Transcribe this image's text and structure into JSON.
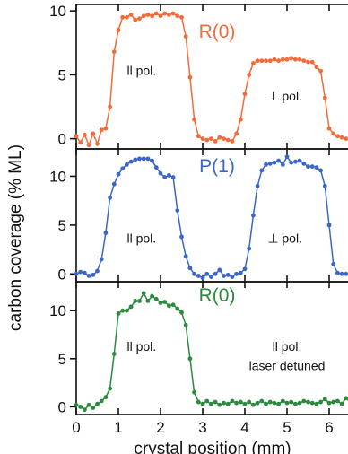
{
  "chart_data": [
    {
      "type": "line",
      "label": "R(0)",
      "color": "#f26b38",
      "ylim": [
        -0.8,
        10.5
      ],
      "yticks": [
        0,
        5,
        10
      ],
      "xlim": [
        0,
        6.6
      ],
      "annotations": [
        {
          "text": "ll pol.",
          "x": 1.55,
          "y": 5.0
        },
        {
          "text": "⊥ pol.",
          "x": 4.95,
          "y": 3.0
        }
      ],
      "x": [
        0.0,
        0.1,
        0.2,
        0.3,
        0.4,
        0.5,
        0.6,
        0.7,
        0.8,
        0.9,
        1.0,
        1.1,
        1.2,
        1.3,
        1.4,
        1.5,
        1.6,
        1.7,
        1.8,
        1.9,
        2.0,
        2.1,
        2.2,
        2.3,
        2.4,
        2.5,
        2.6,
        2.7,
        2.8,
        2.9,
        3.0,
        3.1,
        3.2,
        3.3,
        3.4,
        3.5,
        3.6,
        3.7,
        3.8,
        3.9,
        4.0,
        4.1,
        4.2,
        4.3,
        4.4,
        4.5,
        4.6,
        4.7,
        4.8,
        4.9,
        5.0,
        5.1,
        5.2,
        5.3,
        5.4,
        5.5,
        5.6,
        5.7,
        5.8,
        5.9,
        6.0,
        6.1,
        6.2,
        6.3,
        6.4,
        6.5
      ],
      "y": [
        0.2,
        -0.3,
        0.3,
        -0.5,
        0.4,
        -0.4,
        0.7,
        0.8,
        2.5,
        6.8,
        8.5,
        9.5,
        9.5,
        9.7,
        9.3,
        9.4,
        9.6,
        9.7,
        9.6,
        9.8,
        9.6,
        9.8,
        9.7,
        9.8,
        9.6,
        9.5,
        8.0,
        4.8,
        1.5,
        0.2,
        0.0,
        -0.1,
        0.0,
        -0.2,
        0.1,
        0.0,
        -0.1,
        -0.2,
        0.4,
        1.5,
        3.5,
        5.0,
        5.9,
        6.1,
        6.1,
        6.1,
        6.1,
        6.2,
        6.1,
        6.2,
        6.2,
        6.3,
        6.2,
        6.2,
        6.1,
        6.0,
        6.0,
        5.6,
        5.3,
        3.2,
        0.8,
        0.4,
        0.2,
        0.1,
        0.0,
        0.0
      ]
    },
    {
      "type": "line",
      "label": "P(1)",
      "color": "#3a66c8",
      "ylim": [
        -0.8,
        12.8
      ],
      "yticks": [
        0,
        5,
        10
      ],
      "xlim": [
        0,
        6.6
      ],
      "annotations": [
        {
          "text": "ll pol.",
          "x": 1.55,
          "y": 3.2
        },
        {
          "text": "⊥ pol.",
          "x": 4.95,
          "y": 3.2
        }
      ],
      "x": [
        0.0,
        0.1,
        0.2,
        0.3,
        0.4,
        0.5,
        0.6,
        0.7,
        0.8,
        0.9,
        1.0,
        1.1,
        1.2,
        1.3,
        1.4,
        1.5,
        1.6,
        1.7,
        1.8,
        1.9,
        2.0,
        2.1,
        2.2,
        2.3,
        2.4,
        2.5,
        2.6,
        2.7,
        2.8,
        2.9,
        3.0,
        3.1,
        3.2,
        3.3,
        3.4,
        3.5,
        3.6,
        3.7,
        3.8,
        3.9,
        4.0,
        4.1,
        4.2,
        4.3,
        4.4,
        4.5,
        4.6,
        4.7,
        4.8,
        4.9,
        5.0,
        5.1,
        5.2,
        5.3,
        5.4,
        5.5,
        5.6,
        5.7,
        5.8,
        5.9,
        6.0,
        6.1,
        6.2,
        6.3,
        6.4,
        6.5
      ],
      "y": [
        0.0,
        0.2,
        0.1,
        -0.2,
        -0.1,
        0.3,
        1.5,
        4.2,
        7.8,
        9.2,
        10.2,
        10.8,
        11.2,
        11.5,
        11.7,
        11.8,
        11.8,
        11.8,
        11.6,
        10.9,
        10.3,
        9.9,
        10.1,
        9.9,
        6.5,
        3.8,
        1.8,
        0.6,
        0.0,
        -0.2,
        -0.4,
        0.0,
        -0.3,
        0.0,
        0.4,
        -0.2,
        -0.1,
        -0.3,
        0.0,
        0.1,
        0.5,
        2.6,
        6.0,
        9.0,
        10.6,
        11.2,
        11.3,
        11.4,
        11.6,
        11.2,
        12.0,
        11.4,
        11.5,
        11.6,
        11.3,
        11.0,
        11.0,
        10.9,
        10.6,
        9.0,
        5.0,
        1.0,
        0.1,
        0.0,
        0.0,
        0.0
      ]
    },
    {
      "type": "line",
      "label": "R(0)",
      "color": "#2a8a3e",
      "ylim": [
        -0.8,
        13.0
      ],
      "yticks": [
        0,
        5,
        10
      ],
      "xlim": [
        0,
        6.6
      ],
      "xticks": [
        0,
        1,
        2,
        3,
        4,
        5,
        6
      ],
      "annotations": [
        {
          "text": "ll pol.",
          "x": 1.55,
          "y": 5.8
        },
        {
          "text": "ll pol.",
          "x": 5.0,
          "y": 5.8
        },
        {
          "text": "laser detuned",
          "x": 5.0,
          "y": 3.8
        }
      ],
      "x": [
        0.0,
        0.1,
        0.2,
        0.3,
        0.4,
        0.5,
        0.6,
        0.7,
        0.8,
        0.9,
        1.0,
        1.1,
        1.2,
        1.3,
        1.4,
        1.5,
        1.6,
        1.7,
        1.8,
        1.9,
        2.0,
        2.1,
        2.2,
        2.3,
        2.4,
        2.5,
        2.6,
        2.7,
        2.8,
        2.9,
        3.0,
        3.1,
        3.2,
        3.3,
        3.4,
        3.5,
        3.6,
        3.7,
        3.8,
        3.9,
        4.0,
        4.1,
        4.2,
        4.3,
        4.4,
        4.5,
        4.6,
        4.7,
        4.8,
        4.9,
        5.0,
        5.1,
        5.2,
        5.3,
        5.4,
        5.5,
        5.6,
        5.7,
        5.8,
        5.9,
        6.0,
        6.1,
        6.2,
        6.3,
        6.4,
        6.5
      ],
      "y": [
        0.2,
        0.0,
        -0.3,
        0.2,
        -0.1,
        0.3,
        0.6,
        1.0,
        1.9,
        5.5,
        9.7,
        10.0,
        10.0,
        10.4,
        11.0,
        11.0,
        11.8,
        11.0,
        11.5,
        11.2,
        10.8,
        10.9,
        10.5,
        10.6,
        10.2,
        9.8,
        8.5,
        5.0,
        1.5,
        0.5,
        0.3,
        0.6,
        0.3,
        0.5,
        0.2,
        0.4,
        0.3,
        0.6,
        0.4,
        0.5,
        0.3,
        0.5,
        0.2,
        0.4,
        0.6,
        0.3,
        0.5,
        0.4,
        0.3,
        0.6,
        0.4,
        0.5,
        0.3,
        0.4,
        0.6,
        0.5,
        0.4,
        0.3,
        0.5,
        0.8,
        0.4,
        0.5,
        0.6,
        0.3,
        0.9,
        0.5
      ]
    }
  ],
  "ylabel": "carbon coverage (% ML)",
  "xlabel": "crystal position (mm)"
}
